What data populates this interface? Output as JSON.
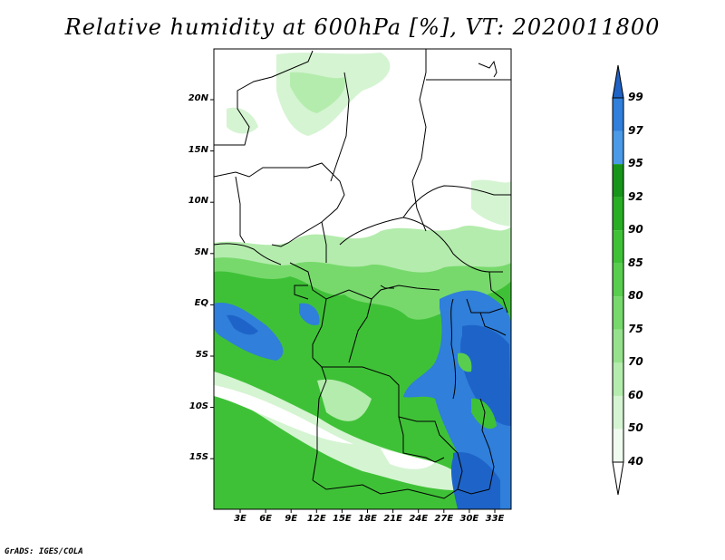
{
  "title": "Relative humidity at 600hPa [%], VT: 2020011800",
  "footer": "GrADS: IGES/COLA",
  "map": {
    "lat_ticks": [
      "20N",
      "15N",
      "10N",
      "5N",
      "EQ",
      "5S",
      "10S",
      "15S"
    ],
    "lon_ticks": [
      "3E",
      "6E",
      "9E",
      "12E",
      "15E",
      "18E",
      "21E",
      "24E",
      "27E",
      "30E",
      "33E"
    ]
  },
  "colorbar": {
    "levels": [
      "40",
      "50",
      "60",
      "70",
      "75",
      "80",
      "85",
      "90",
      "92",
      "95",
      "97",
      "99"
    ],
    "colors": [
      "#f0fbf0",
      "#d5f4d2",
      "#b4ecad",
      "#96e28c",
      "#77d96c",
      "#59ce4e",
      "#3fc137",
      "#28ad24",
      "#17941a",
      "#4a9ae8",
      "#2f7fdb",
      "#1e64c8"
    ],
    "underflow_color": "#ffffff",
    "overflow_color": "#1f63c6"
  },
  "chart_data": {
    "type": "heatmap",
    "title": "Relative humidity at 600hPa [%], VT: 2020011800",
    "xlabel": "",
    "ylabel": "",
    "xlim_deg_east": [
      0,
      35
    ],
    "ylim_deg_north": [
      -19.5,
      25
    ],
    "contour_levels": [
      40,
      50,
      60,
      70,
      75,
      80,
      85,
      90,
      92,
      95,
      97,
      99
    ],
    "units": "%",
    "lat_ticks": [
      "20N",
      "15N",
      "10N",
      "5N",
      "EQ",
      "5S",
      "10S",
      "15S"
    ],
    "lon_ticks": [
      "3E",
      "6E",
      "9E",
      "12E",
      "15E",
      "18E",
      "21E",
      "24E",
      "27E",
      "30E",
      "33E"
    ]
  }
}
